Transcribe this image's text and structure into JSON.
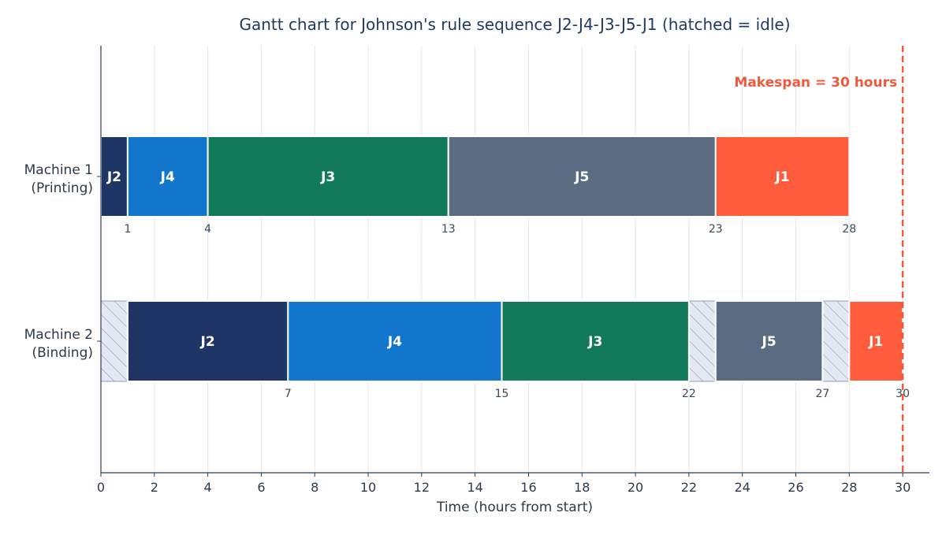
{
  "chart_data": {
    "type": "gantt",
    "title": "Gantt chart for Johnson's rule sequence J2-J4-J3-J5-J1 (hatched = idle)",
    "xlabel": "Time (hours from start)",
    "xlim": [
      0,
      31
    ],
    "xticks": [
      0,
      2,
      4,
      6,
      8,
      10,
      12,
      14,
      16,
      18,
      20,
      22,
      24,
      26,
      28,
      30
    ],
    "grid": "vertical",
    "rows": [
      {
        "label_line1": "Machine 1",
        "label_line2": "(Printing)",
        "tasks": [
          {
            "job": "J2",
            "start": 0,
            "end": 1
          },
          {
            "job": "J4",
            "start": 1,
            "end": 4
          },
          {
            "job": "J3",
            "start": 4,
            "end": 13
          },
          {
            "job": "J5",
            "start": 13,
            "end": 23
          },
          {
            "job": "J1",
            "start": 23,
            "end": 28
          }
        ],
        "idle": [],
        "end_labels": [
          "1",
          "4",
          "13",
          "23",
          "28"
        ]
      },
      {
        "label_line1": "Machine 2",
        "label_line2": "(Binding)",
        "tasks": [
          {
            "job": "J2",
            "start": 1,
            "end": 7
          },
          {
            "job": "J4",
            "start": 7,
            "end": 15
          },
          {
            "job": "J3",
            "start": 15,
            "end": 22
          },
          {
            "job": "J5",
            "start": 23,
            "end": 27
          },
          {
            "job": "J1",
            "start": 28,
            "end": 30
          }
        ],
        "idle": [
          {
            "start": 0,
            "end": 1
          },
          {
            "start": 22,
            "end": 23
          },
          {
            "start": 27,
            "end": 28
          }
        ],
        "end_labels": [
          "7",
          "15",
          "22",
          "27",
          "30"
        ]
      }
    ],
    "makespan": {
      "value": 30,
      "label": "Makespan = 30 hours"
    },
    "colors": {
      "J1": "#ff5c3d",
      "J2": "#1f3566",
      "J3": "#117a5a",
      "J4": "#1276cc",
      "J5": "#5b6b82",
      "idle_fill": "#e4e8f2",
      "idle_stroke": "#8e9ab5",
      "makespan": "#f05a3c",
      "grid": "#e4e6ea",
      "axis": "#2d3a5a"
    }
  }
}
